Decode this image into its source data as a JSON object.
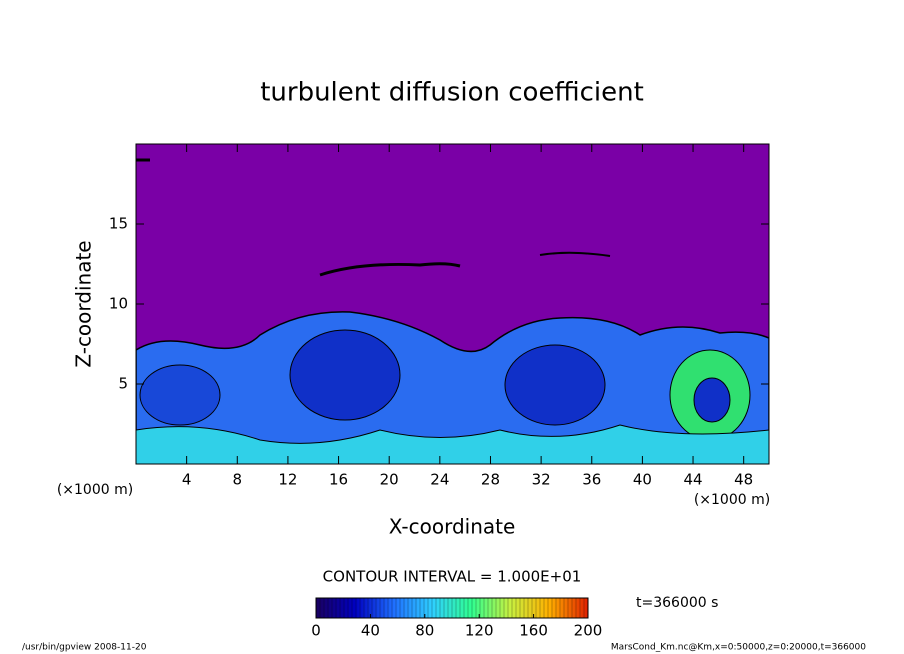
{
  "chart_data": {
    "type": "contour",
    "title": "turbulent diffusion coefficient",
    "xlabel": "X-coordinate",
    "ylabel": "Z-coordinate",
    "xunit": "(×1000 m)",
    "xlim": [
      0,
      50
    ],
    "ylim": [
      0,
      20
    ],
    "xticks": [
      4,
      8,
      12,
      16,
      20,
      24,
      28,
      32,
      36,
      40,
      44,
      48
    ],
    "yticks": [
      5,
      10,
      15
    ],
    "background_color": "#7a00a6",
    "colorbar": {
      "title": "CONTOUR INTERVAL = 1.000E+01",
      "lim": [
        0,
        200
      ],
      "ticks": [
        0,
        40,
        80,
        120,
        160,
        200
      ],
      "colors": [
        "#1a0060",
        "#0000c0",
        "#1f6fff",
        "#2fd0ff",
        "#30ff90",
        "#c8f040",
        "#ffb000",
        "#e02000"
      ]
    },
    "time_label": "t=366000 s"
  },
  "footer": {
    "left": "/usr/bin/gpview  2008-11-20",
    "right": "MarsCond_Km.nc@Km,x=0:50000,z=0:20000,t=366000"
  }
}
